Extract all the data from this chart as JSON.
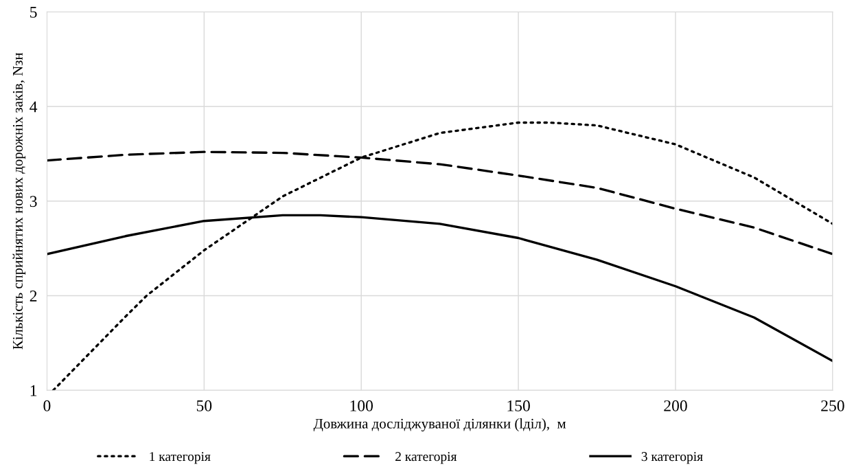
{
  "chart_data": {
    "type": "line",
    "xlabel": "Довжина досліджуваної ділянки (lділ),  м",
    "ylabel": "Кількість сприйнятих нових дорожніх заків, Nзн",
    "xlim": [
      0,
      250
    ],
    "ylim": [
      1,
      5
    ],
    "xticks": [
      0,
      50,
      100,
      150,
      200,
      250
    ],
    "yticks": [
      1,
      2,
      3,
      4,
      5
    ],
    "grid": true,
    "legend": "bottom",
    "marker": "none",
    "series": [
      {
        "name": "1 категорія",
        "color": "#000000",
        "line_style": "dotted",
        "x": [
          2,
          25,
          31.7,
          50,
          75,
          100,
          125,
          150,
          160,
          175,
          200,
          225,
          250
        ],
        "values": [
          1.0,
          1.78,
          2.0,
          2.48,
          3.05,
          3.46,
          3.72,
          3.83,
          3.83,
          3.8,
          3.6,
          3.25,
          2.76
        ]
      },
      {
        "name": "2 категорія",
        "color": "#000000",
        "line_style": "dashed",
        "x": [
          0,
          25,
          50,
          75,
          100,
          125,
          150,
          175,
          200,
          225,
          250
        ],
        "values": [
          3.43,
          3.49,
          3.52,
          3.51,
          3.46,
          3.39,
          3.27,
          3.14,
          2.92,
          2.72,
          2.44
        ]
      },
      {
        "name": "3 категорія",
        "color": "#000000",
        "line_style": "solid",
        "x": [
          0,
          25,
          50,
          75,
          87,
          100,
          125,
          150,
          175,
          200,
          225,
          250
        ],
        "values": [
          2.44,
          2.63,
          2.79,
          2.85,
          2.85,
          2.83,
          2.76,
          2.61,
          2.38,
          2.1,
          1.77,
          1.31
        ]
      }
    ]
  }
}
